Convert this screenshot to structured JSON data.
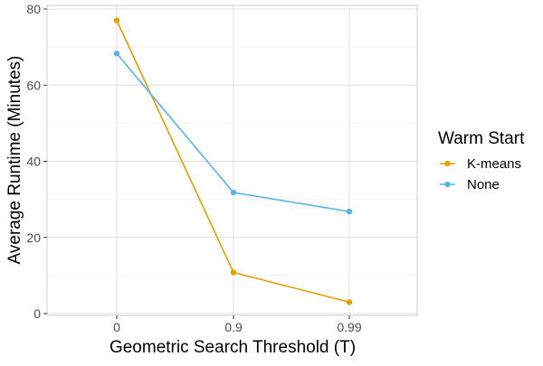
{
  "chart_data": {
    "type": "line",
    "title": "",
    "xlabel": "Geometric Search Threshold (T)",
    "ylabel": "Average Runtime (Minutes)",
    "categories": [
      "0",
      "0.9",
      "0.99"
    ],
    "ylim": [
      0,
      80
    ],
    "yticks": [
      0,
      20,
      40,
      60,
      80
    ],
    "grid": true,
    "legend": {
      "title": "Warm Start",
      "position": "right"
    },
    "series": [
      {
        "name": "K-means",
        "color": "#E69F00",
        "values": [
          77,
          10.8,
          3.0
        ]
      },
      {
        "name": "None",
        "color": "#56B4E9",
        "values": [
          68.3,
          31.8,
          26.8
        ]
      }
    ]
  }
}
